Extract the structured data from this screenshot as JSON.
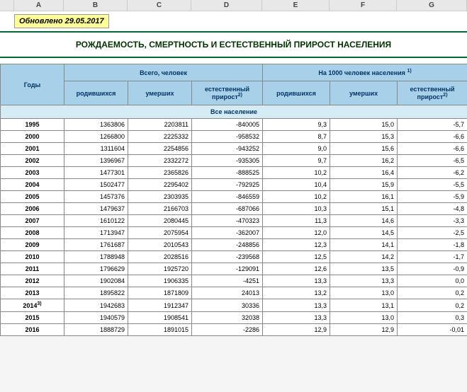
{
  "columns": [
    "A",
    "B",
    "C",
    "D",
    "E",
    "F",
    "G"
  ],
  "updated": "Обновлено 29.05.2017",
  "title": "РОЖДАЕМОСТЬ, СМЕРТНОСТЬ И ЕСТЕСТВЕННЫЙ ПРИРОСТ НАСЕЛЕНИЯ",
  "header": {
    "years": "Годы",
    "group1": "Всего, человек",
    "group2": "На 1000 человек населения",
    "group2_sup": "1)",
    "born": "родившихся",
    "died": "умерших",
    "natural": "естественный прирост",
    "natural_sup": "2)"
  },
  "section": "Все население",
  "rows": [
    {
      "year": "1995",
      "b": "1363806",
      "c": "2203811",
      "d": "-840005",
      "e": "9,3",
      "f": "15,0",
      "g": "-5,7"
    },
    {
      "year": "2000",
      "b": "1266800",
      "c": "2225332",
      "d": "-958532",
      "e": "8,7",
      "f": "15,3",
      "g": "-6,6"
    },
    {
      "year": "2001",
      "b": "1311604",
      "c": "2254856",
      "d": "-943252",
      "e": "9,0",
      "f": "15,6",
      "g": "-6,6"
    },
    {
      "year": "2002",
      "b": "1396967",
      "c": "2332272",
      "d": "-935305",
      "e": "9,7",
      "f": "16,2",
      "g": "-6,5"
    },
    {
      "year": "2003",
      "b": "1477301",
      "c": "2365826",
      "d": "-888525",
      "e": "10,2",
      "f": "16,4",
      "g": "-6,2"
    },
    {
      "year": "2004",
      "b": "1502477",
      "c": "2295402",
      "d": "-792925",
      "e": "10,4",
      "f": "15,9",
      "g": "-5,5"
    },
    {
      "year": "2005",
      "b": "1457376",
      "c": "2303935",
      "d": "-846559",
      "e": "10,2",
      "f": "16,1",
      "g": "-5,9"
    },
    {
      "year": "2006",
      "b": "1479637",
      "c": "2166703",
      "d": "-687066",
      "e": "10,3",
      "f": "15,1",
      "g": "-4,8"
    },
    {
      "year": "2007",
      "b": "1610122",
      "c": "2080445",
      "d": "-470323",
      "e": "11,3",
      "f": "14,6",
      "g": "-3,3"
    },
    {
      "year": "2008",
      "b": "1713947",
      "c": "2075954",
      "d": "-362007",
      "e": "12,0",
      "f": "14,5",
      "g": "-2,5"
    },
    {
      "year": "2009",
      "b": "1761687",
      "c": "2010543",
      "d": "-248856",
      "e": "12,3",
      "f": "14,1",
      "g": "-1,8"
    },
    {
      "year": "2010",
      "b": "1788948",
      "c": "2028516",
      "d": "-239568",
      "e": "12,5",
      "f": "14,2",
      "g": "-1,7"
    },
    {
      "year": "2011",
      "b": "1796629",
      "c": "1925720",
      "d": "-129091",
      "e": "12,6",
      "f": "13,5",
      "g": "-0,9"
    },
    {
      "year": "2012",
      "b": "1902084",
      "c": "1906335",
      "d": "-4251",
      "e": "13,3",
      "f": "13,3",
      "g": "0,0"
    },
    {
      "year": "2013",
      "b": "1895822",
      "c": "1871809",
      "d": "24013",
      "e": "13,2",
      "f": "13,0",
      "g": "0,2"
    },
    {
      "year": "2014",
      "year_sup": "3)",
      "b": "1942683",
      "c": "1912347",
      "d": "30336",
      "e": "13,3",
      "f": "13,1",
      "g": "0,2"
    },
    {
      "year": "2015",
      "b": "1940579",
      "c": "1908541",
      "d": "32038",
      "e": "13,3",
      "f": "13,0",
      "g": "0,3"
    },
    {
      "year": "2016",
      "b": "1888729",
      "c": "1891015",
      "d": "-2286",
      "e": "12,9",
      "f": "12,9",
      "g": "-0,01"
    }
  ],
  "colors": {
    "header_bg": "#a8d0e8",
    "subhead_bg": "#d6ecf5",
    "updated_bg": "#ffff99",
    "title_border": "#006633"
  }
}
